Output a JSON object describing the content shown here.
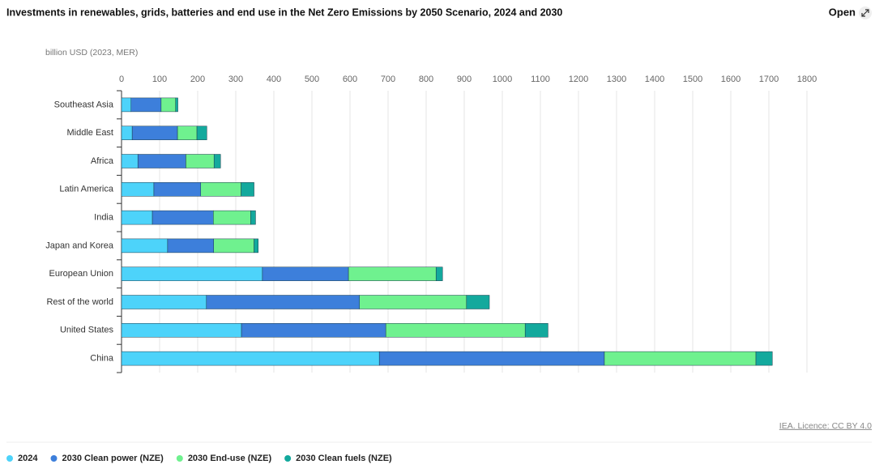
{
  "chart_data": {
    "type": "bar",
    "orientation": "horizontal",
    "title": "Investments in renewables, grids, batteries and end use in the Net Zero Emissions by 2050 Scenario, 2024 and 2030",
    "x_label": "billion USD (2023, MER)",
    "categories": [
      "Southeast Asia",
      "Middle East",
      "Africa",
      "Latin America",
      "India",
      "Japan and Korea",
      "European Union",
      "Rest of the world",
      "United States",
      "China"
    ],
    "series": [
      {
        "name": "2024",
        "color": "#4dd3fa",
        "values": [
          25,
          28,
          43,
          85,
          81,
          121,
          370,
          223,
          315,
          677
        ]
      },
      {
        "name": "2030 Clean power (NZE)",
        "color": "#3d7fdb",
        "values": [
          79,
          119,
          126,
          123,
          160,
          121,
          226,
          402,
          379,
          591
        ]
      },
      {
        "name": "2030 End-use (NZE)",
        "color": "#6ff18f",
        "values": [
          38,
          51,
          74,
          106,
          98,
          106,
          230,
          281,
          366,
          398
        ]
      },
      {
        "name": "2030 Clean fuels (NZE)",
        "color": "#13a99d",
        "values": [
          6,
          26,
          17,
          34,
          13,
          11,
          17,
          60,
          60,
          43
        ]
      }
    ],
    "xlim": [
      0,
      1800
    ],
    "xticks": [
      0,
      100,
      200,
      300,
      400,
      500,
      600,
      700,
      800,
      900,
      1000,
      1100,
      1200,
      1300,
      1400,
      1500,
      1600,
      1700,
      1800
    ],
    "grid": true,
    "legend": "bottom-left"
  },
  "header": {
    "open_label": "Open"
  },
  "footer": {
    "licence": "IEA. Licence: CC BY 4.0"
  }
}
